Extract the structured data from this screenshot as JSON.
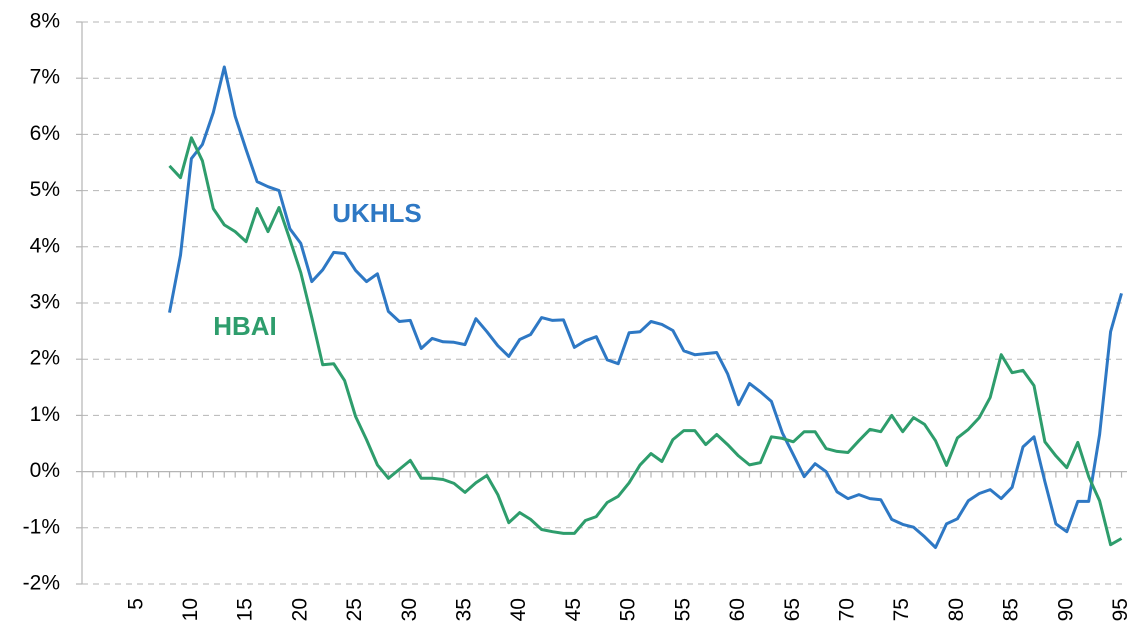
{
  "chart_data": {
    "type": "line",
    "x": [
      8,
      9,
      10,
      11,
      12,
      13,
      14,
      15,
      16,
      17,
      18,
      19,
      20,
      21,
      22,
      23,
      24,
      25,
      26,
      27,
      28,
      29,
      30,
      31,
      32,
      33,
      34,
      35,
      36,
      37,
      38,
      39,
      40,
      41,
      42,
      43,
      44,
      45,
      46,
      47,
      48,
      49,
      50,
      51,
      52,
      53,
      54,
      55,
      56,
      57,
      58,
      59,
      60,
      61,
      62,
      63,
      64,
      65,
      66,
      67,
      68,
      69,
      70,
      71,
      72,
      73,
      74,
      75,
      76,
      77,
      78,
      79,
      80,
      81,
      82,
      83,
      84,
      85,
      86,
      87,
      88,
      89,
      90,
      91,
      92,
      93,
      94,
      95
    ],
    "series": [
      {
        "name": "UKHLS",
        "color": "#2e78c4",
        "values": [
          2.83,
          3.85,
          5.57,
          5.82,
          6.39,
          7.2,
          6.32,
          5.73,
          5.16,
          5.07,
          5.0,
          4.32,
          4.06,
          3.38,
          3.59,
          3.9,
          3.88,
          3.58,
          3.38,
          3.52,
          2.85,
          2.67,
          2.69,
          2.19,
          2.37,
          2.31,
          2.3,
          2.26,
          2.72,
          2.49,
          2.24,
          2.05,
          2.35,
          2.44,
          2.74,
          2.69,
          2.7,
          2.21,
          2.33,
          2.4,
          1.99,
          1.92,
          2.47,
          2.49,
          2.67,
          2.62,
          2.51,
          2.15,
          2.08,
          2.1,
          2.12,
          1.74,
          1.19,
          1.57,
          1.42,
          1.25,
          0.69,
          0.3,
          -0.09,
          0.14,
          0.0,
          -0.36,
          -0.48,
          -0.41,
          -0.48,
          -0.5,
          -0.85,
          -0.94,
          -0.99,
          -1.16,
          -1.35,
          -0.93,
          -0.84,
          -0.52,
          -0.39,
          -0.32,
          -0.48,
          -0.28,
          0.44,
          0.62,
          -0.18,
          -0.93,
          -1.07,
          -0.53,
          -0.53,
          0.66,
          2.49,
          3.17
        ]
      },
      {
        "name": "HBAI",
        "color": "#2e9d6c",
        "values": [
          5.44,
          5.23,
          5.94,
          5.53,
          4.68,
          4.39,
          4.27,
          4.09,
          4.68,
          4.27,
          4.7,
          4.13,
          3.54,
          2.74,
          1.9,
          1.92,
          1.62,
          0.98,
          0.57,
          0.12,
          -0.12,
          0.04,
          0.2,
          -0.12,
          -0.12,
          -0.14,
          -0.21,
          -0.37,
          -0.2,
          -0.07,
          -0.41,
          -0.91,
          -0.73,
          -0.85,
          -1.03,
          -1.07,
          -1.1,
          -1.1,
          -0.87,
          -0.8,
          -0.55,
          -0.44,
          -0.2,
          0.12,
          0.32,
          0.18,
          0.57,
          0.73,
          0.73,
          0.48,
          0.66,
          0.48,
          0.28,
          0.12,
          0.16,
          0.62,
          0.59,
          0.53,
          0.71,
          0.71,
          0.41,
          0.36,
          0.34,
          0.55,
          0.75,
          0.71,
          1.0,
          0.71,
          0.96,
          0.84,
          0.55,
          0.11,
          0.6,
          0.75,
          0.96,
          1.32,
          2.08,
          1.76,
          1.8,
          1.53,
          0.53,
          0.28,
          0.07,
          0.52,
          -0.09,
          -0.52,
          -1.3,
          -1.19
        ]
      }
    ],
    "xlim": [
      0,
      95.5
    ],
    "xticks": [
      5,
      10,
      15,
      20,
      25,
      30,
      35,
      40,
      45,
      50,
      55,
      60,
      65,
      70,
      75,
      80,
      85,
      90,
      95
    ],
    "ylim": [
      -2,
      8
    ],
    "yticks": [
      {
        "value": -2,
        "label": "-2%"
      },
      {
        "value": -1,
        "label": "-1%"
      },
      {
        "value": 0,
        "label": "0%"
      },
      {
        "value": 1,
        "label": "1%"
      },
      {
        "value": 2,
        "label": "2%"
      },
      {
        "value": 3,
        "label": "3%"
      },
      {
        "value": 4,
        "label": "4%"
      },
      {
        "value": 5,
        "label": "5%"
      },
      {
        "value": 6,
        "label": "6%"
      },
      {
        "value": 7,
        "label": "7%"
      },
      {
        "value": 8,
        "label": "8%"
      }
    ],
    "grid": true
  }
}
